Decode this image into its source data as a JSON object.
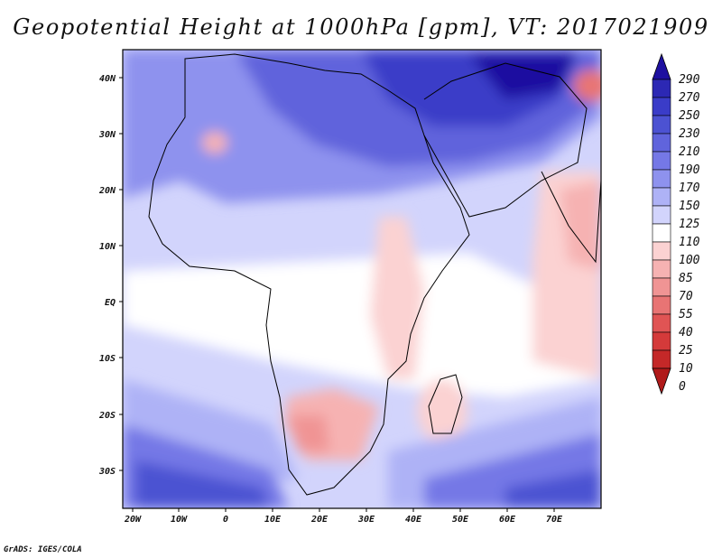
{
  "title": "Geopotential Height at 1000hPa [gpm], VT: 2017021909",
  "credit": "GrADS: IGES/COLA",
  "axes": {
    "lon_labels": [
      "20W",
      "10W",
      "0",
      "10E",
      "20E",
      "30E",
      "40E",
      "50E",
      "60E",
      "70E"
    ],
    "lat_labels": [
      "40N",
      "30N",
      "20N",
      "10N",
      "EQ",
      "10S",
      "20S",
      "30S"
    ]
  },
  "colorbar": {
    "labels": [
      "290",
      "270",
      "250",
      "230",
      "210",
      "190",
      "170",
      "150",
      "125",
      "110",
      "100",
      "85",
      "70",
      "55",
      "40",
      "25",
      "10",
      "0"
    ],
    "colors": [
      "#1e10a0",
      "#2c28b4",
      "#3a3cc8",
      "#4c52d2",
      "#6064dc",
      "#7578e6",
      "#8e92ee",
      "#aeb2f6",
      "#d2d4fc",
      "#ffffff",
      "#fbd2d2",
      "#f6b2b2",
      "#f09494",
      "#e87474",
      "#e05454",
      "#d43a3a",
      "#c42828",
      "#b01a1a"
    ]
  }
}
